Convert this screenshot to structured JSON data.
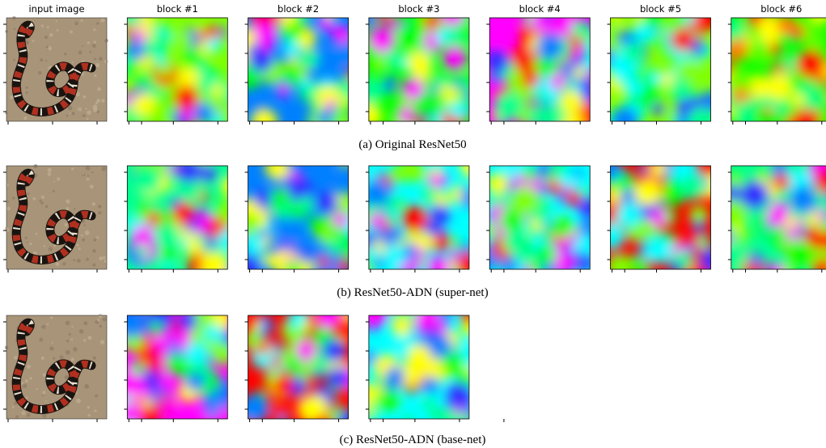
{
  "header": {
    "columns": [
      "input image",
      "block #1",
      "block #2",
      "block #3",
      "block #4",
      "block #5",
      "block #6"
    ]
  },
  "rows": [
    {
      "caption": "(a) Original ResNet50"
    },
    {
      "caption": "(b) ResNet50-ADN (super-net)"
    },
    {
      "caption": "(c) ResNet50-ADN (base-net)"
    }
  ]
}
